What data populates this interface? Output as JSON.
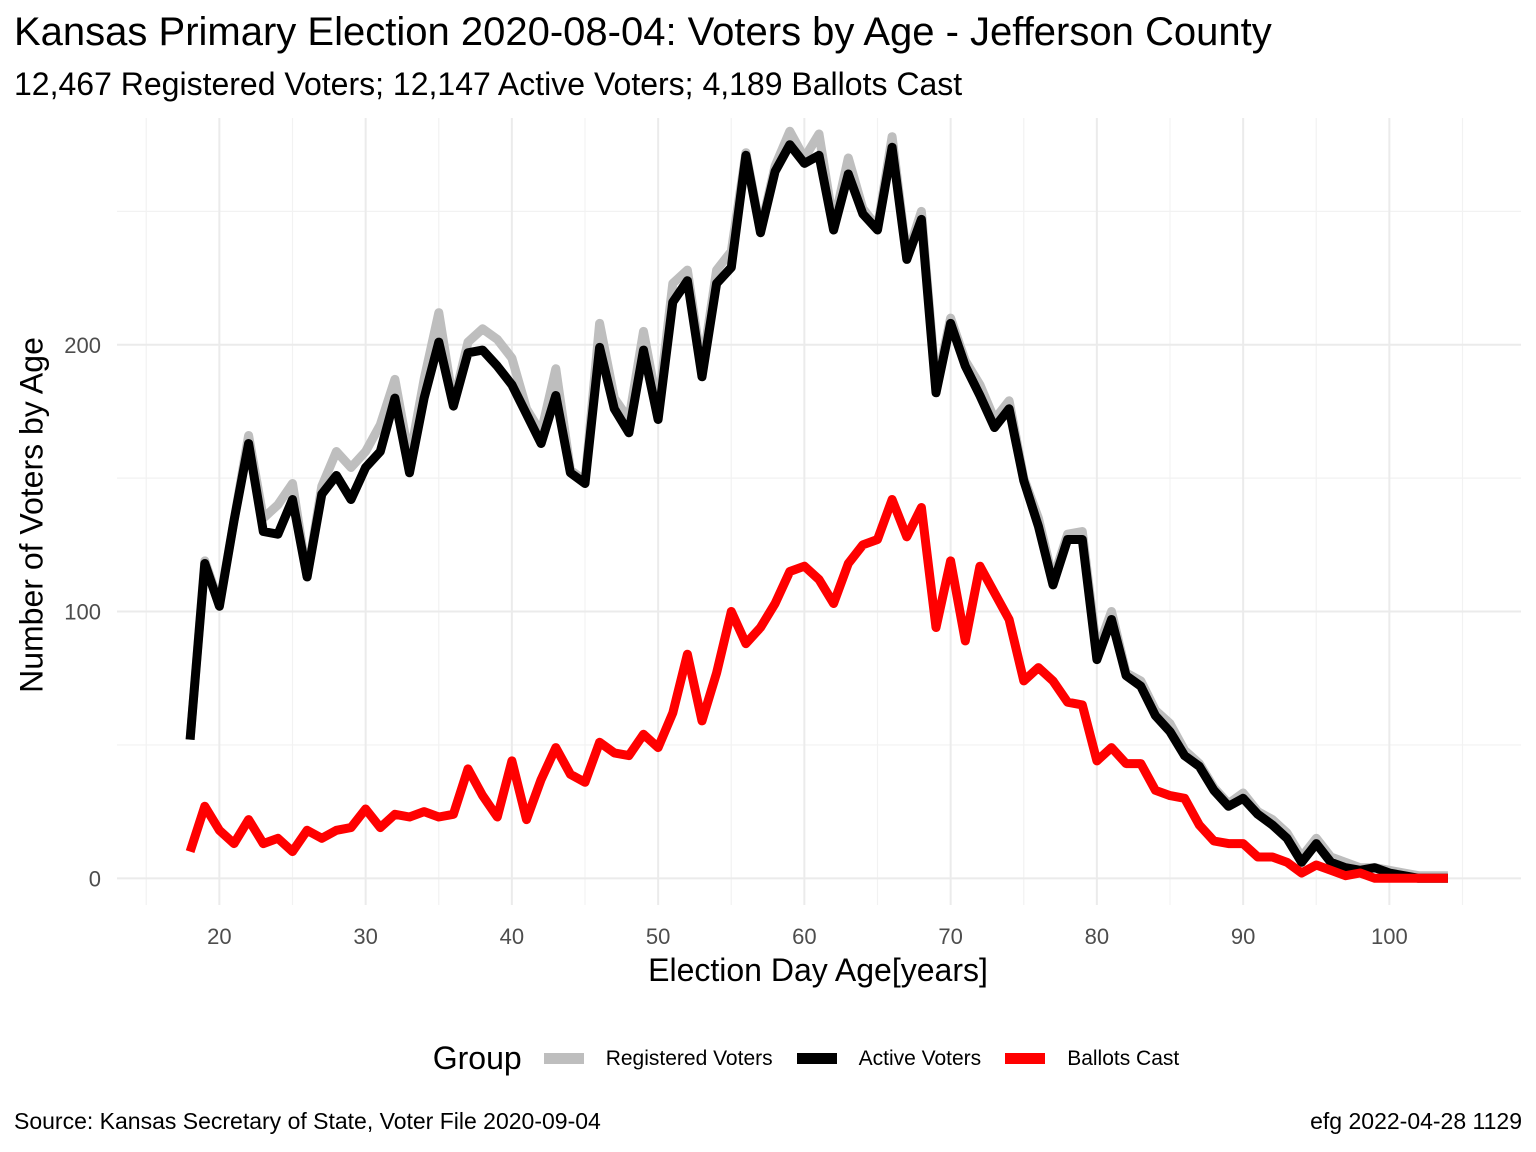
{
  "chart_data": {
    "type": "line",
    "title": "Kansas Primary Election 2020-08-04:  Voters by Age - Jefferson County",
    "subtitle": "12,467 Registered Voters; 12,147 Active Voters; 4,189 Ballots Cast",
    "xlabel": "Election Day Age[years]",
    "ylabel": "Number of Voters by Age",
    "xlim": [
      13,
      109
    ],
    "ylim": [
      -10,
      285
    ],
    "x_ticks": [
      20,
      30,
      40,
      50,
      60,
      70,
      80,
      90,
      100
    ],
    "y_ticks": [
      0,
      100,
      200
    ],
    "grid": true,
    "legend_title": "Group",
    "legend_position": "bottom",
    "x": [
      18,
      19,
      20,
      21,
      22,
      23,
      24,
      25,
      26,
      27,
      28,
      29,
      30,
      31,
      32,
      33,
      34,
      35,
      36,
      37,
      38,
      39,
      40,
      41,
      42,
      43,
      44,
      45,
      46,
      47,
      48,
      49,
      50,
      51,
      52,
      53,
      54,
      55,
      56,
      57,
      58,
      59,
      60,
      61,
      62,
      63,
      64,
      65,
      66,
      67,
      68,
      69,
      70,
      71,
      72,
      73,
      74,
      75,
      76,
      77,
      78,
      79,
      80,
      81,
      82,
      83,
      84,
      85,
      86,
      87,
      88,
      89,
      90,
      91,
      92,
      93,
      94,
      95,
      96,
      97,
      98,
      99,
      100,
      101,
      102,
      103,
      104
    ],
    "series": [
      {
        "name": "Registered Voters",
        "color": "#bebebe",
        "values": [
          52,
          119,
          103,
          134,
          166,
          135,
          140,
          148,
          113,
          147,
          160,
          154,
          160,
          170,
          187,
          157,
          187,
          212,
          178,
          201,
          206,
          202,
          195,
          176,
          167,
          191,
          153,
          149,
          208,
          180,
          172,
          205,
          176,
          223,
          228,
          191,
          228,
          235,
          272,
          243,
          267,
          280,
          270,
          279,
          245,
          270,
          251,
          244,
          278,
          233,
          250,
          184,
          210,
          194,
          185,
          172,
          179,
          150,
          135,
          112,
          129,
          130,
          85,
          100,
          77,
          74,
          63,
          58,
          48,
          43,
          34,
          28,
          32,
          25,
          22,
          17,
          8,
          15,
          8,
          6,
          4,
          4,
          3,
          2,
          1,
          1,
          1
        ]
      },
      {
        "name": "Active Voters",
        "color": "#000000",
        "values": [
          52,
          118,
          102,
          134,
          163,
          130,
          129,
          142,
          113,
          144,
          151,
          142,
          154,
          160,
          180,
          152,
          180,
          201,
          177,
          197,
          198,
          192,
          185,
          174,
          163,
          181,
          152,
          148,
          199,
          176,
          167,
          198,
          172,
          216,
          224,
          188,
          223,
          229,
          271,
          242,
          265,
          275,
          268,
          271,
          243,
          264,
          249,
          243,
          274,
          232,
          247,
          182,
          208,
          192,
          181,
          169,
          176,
          149,
          132,
          110,
          127,
          127,
          82,
          97,
          76,
          72,
          61,
          55,
          46,
          42,
          33,
          27,
          30,
          24,
          20,
          15,
          6,
          13,
          6,
          4,
          3,
          4,
          2,
          1,
          0,
          0,
          0
        ]
      },
      {
        "name": "Ballots Cast",
        "color": "#ff0000",
        "values": [
          10,
          27,
          18,
          13,
          22,
          13,
          15,
          10,
          18,
          15,
          18,
          19,
          26,
          19,
          24,
          23,
          25,
          23,
          24,
          41,
          31,
          23,
          44,
          22,
          37,
          49,
          39,
          36,
          51,
          47,
          46,
          54,
          49,
          62,
          84,
          59,
          77,
          100,
          88,
          94,
          103,
          115,
          117,
          112,
          103,
          118,
          125,
          127,
          142,
          128,
          139,
          94,
          119,
          89,
          117,
          107,
          97,
          74,
          79,
          74,
          66,
          65,
          44,
          49,
          43,
          43,
          33,
          31,
          30,
          20,
          14,
          13,
          13,
          8,
          8,
          6,
          2,
          5,
          3,
          1,
          2,
          0,
          0,
          0,
          0,
          0,
          0
        ]
      }
    ]
  },
  "footer": {
    "source": "Source:  Kansas Secretary of State, Voter File  2020-09-04",
    "stamp": "efg 2022-04-28 1129"
  }
}
